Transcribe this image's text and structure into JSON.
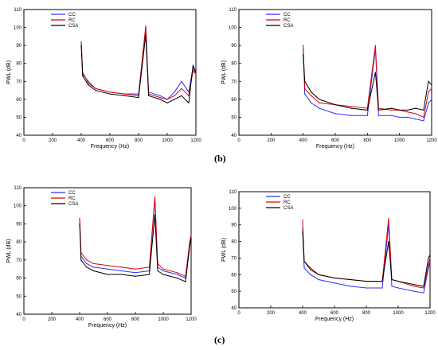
{
  "captions": {
    "top": "(b)",
    "bottom": "(c)"
  },
  "colors": {
    "CC": "#2d2dff",
    "RC": "#e00000",
    "CSA": "#000000",
    "axis": "#000000"
  },
  "chart_data": [
    {
      "type": "line",
      "xlabel": "Frequency (Hz)",
      "ylabel": "PWL (dB)",
      "xlim": [
        0,
        1200
      ],
      "ylim": [
        40,
        110
      ],
      "xticks": [
        0,
        200,
        400,
        600,
        800,
        1000,
        1200
      ],
      "yticks": [
        40,
        50,
        60,
        70,
        80,
        90,
        100,
        110
      ],
      "legend": "top-left",
      "series": [
        {
          "name": "CC",
          "values": [
            [
              400,
              92
            ],
            [
              410,
              74
            ],
            [
              450,
              70
            ],
            [
              500,
              66
            ],
            [
              600,
              64
            ],
            [
              700,
              63
            ],
            [
              800,
              63
            ],
            [
              850,
              100
            ],
            [
              870,
              64
            ],
            [
              950,
              62
            ],
            [
              1000,
              60
            ],
            [
              1050,
              64
            ],
            [
              1100,
              70
            ],
            [
              1150,
              64
            ],
            [
              1180,
              78
            ],
            [
              1200,
              74
            ]
          ]
        },
        {
          "name": "RC",
          "values": [
            [
              400,
              92
            ],
            [
              410,
              75
            ],
            [
              450,
              69
            ],
            [
              500,
              66
            ],
            [
              600,
              64
            ],
            [
              700,
              63
            ],
            [
              800,
              62
            ],
            [
              850,
              101
            ],
            [
              870,
              63
            ],
            [
              950,
              61
            ],
            [
              1000,
              60
            ],
            [
              1050,
              62
            ],
            [
              1100,
              66
            ],
            [
              1150,
              62
            ],
            [
              1180,
              76
            ],
            [
              1200,
              74
            ]
          ]
        },
        {
          "name": "CSA",
          "values": [
            [
              400,
              90
            ],
            [
              410,
              73
            ],
            [
              450,
              68
            ],
            [
              500,
              65
            ],
            [
              600,
              63
            ],
            [
              700,
              62
            ],
            [
              800,
              61
            ],
            [
              850,
              96
            ],
            [
              870,
              62
            ],
            [
              950,
              60
            ],
            [
              1000,
              58
            ],
            [
              1050,
              60
            ],
            [
              1100,
              62
            ],
            [
              1150,
              58
            ],
            [
              1180,
              79
            ],
            [
              1200,
              75
            ]
          ]
        }
      ]
    },
    {
      "type": "line",
      "xlabel": "Frequency (Hz)",
      "ylabel": "PWL (dB)",
      "xlim": [
        0,
        1200
      ],
      "ylim": [
        40,
        110
      ],
      "xticks": [
        0,
        200,
        400,
        600,
        800,
        1000,
        1200
      ],
      "yticks": [
        40,
        50,
        60,
        70,
        80,
        90,
        100,
        110
      ],
      "legend": "top-left",
      "series": [
        {
          "name": "CC",
          "values": [
            [
              400,
              88
            ],
            [
              410,
              63
            ],
            [
              450,
              58
            ],
            [
              500,
              55
            ],
            [
              600,
              52
            ],
            [
              700,
              51
            ],
            [
              800,
              51
            ],
            [
              850,
              88
            ],
            [
              870,
              51
            ],
            [
              950,
              51
            ],
            [
              1000,
              50
            ],
            [
              1050,
              50
            ],
            [
              1100,
              49
            ],
            [
              1150,
              48
            ],
            [
              1180,
              58
            ],
            [
              1200,
              60
            ]
          ]
        },
        {
          "name": "RC",
          "values": [
            [
              400,
              90
            ],
            [
              410,
              66
            ],
            [
              450,
              62
            ],
            [
              500,
              58
            ],
            [
              600,
              57
            ],
            [
              700,
              56
            ],
            [
              800,
              55
            ],
            [
              850,
              90
            ],
            [
              870,
              55
            ],
            [
              950,
              54
            ],
            [
              1000,
              54
            ],
            [
              1050,
              53
            ],
            [
              1100,
              52
            ],
            [
              1150,
              50
            ],
            [
              1180,
              64
            ],
            [
              1200,
              66
            ]
          ]
        },
        {
          "name": "CSA",
          "values": [
            [
              400,
              85
            ],
            [
              410,
              70
            ],
            [
              450,
              64
            ],
            [
              500,
              60
            ],
            [
              600,
              57
            ],
            [
              700,
              55
            ],
            [
              800,
              54
            ],
            [
              850,
              75
            ],
            [
              870,
              54
            ],
            [
              950,
              55
            ],
            [
              1000,
              54
            ],
            [
              1050,
              54
            ],
            [
              1100,
              55
            ],
            [
              1150,
              54
            ],
            [
              1180,
              70
            ],
            [
              1200,
              68
            ]
          ]
        }
      ]
    },
    {
      "type": "line",
      "xlabel": "Frequency (Hz)",
      "ylabel": "PWL (dB)",
      "xlim": [
        0,
        1200
      ],
      "ylim": [
        40,
        110
      ],
      "xticks": [
        0,
        200,
        400,
        600,
        800,
        1000,
        1200
      ],
      "yticks": [
        40,
        50,
        60,
        70,
        80,
        90,
        100,
        110
      ],
      "legend": "top-left",
      "series": [
        {
          "name": "CC",
          "values": [
            [
              400,
              93
            ],
            [
              410,
              72
            ],
            [
              450,
              68
            ],
            [
              500,
              66
            ],
            [
              600,
              65
            ],
            [
              700,
              64
            ],
            [
              800,
              63
            ],
            [
              900,
              64
            ],
            [
              940,
              104
            ],
            [
              960,
              66
            ],
            [
              1000,
              64
            ],
            [
              1100,
              62
            ],
            [
              1160,
              60
            ],
            [
              1190,
              80
            ],
            [
              1200,
              84
            ]
          ]
        },
        {
          "name": "RC",
          "values": [
            [
              400,
              93
            ],
            [
              410,
              74
            ],
            [
              450,
              70
            ],
            [
              500,
              68
            ],
            [
              600,
              67
            ],
            [
              700,
              66
            ],
            [
              800,
              65
            ],
            [
              900,
              66
            ],
            [
              940,
              105
            ],
            [
              960,
              68
            ],
            [
              1000,
              65
            ],
            [
              1100,
              63
            ],
            [
              1160,
              61
            ],
            [
              1190,
              80
            ],
            [
              1200,
              84
            ]
          ]
        },
        {
          "name": "CSA",
          "values": [
            [
              400,
              90
            ],
            [
              410,
              70
            ],
            [
              450,
              66
            ],
            [
              500,
              64
            ],
            [
              600,
              62
            ],
            [
              700,
              62
            ],
            [
              800,
              61
            ],
            [
              900,
              62
            ],
            [
              940,
              95
            ],
            [
              960,
              64
            ],
            [
              1000,
              62
            ],
            [
              1100,
              60
            ],
            [
              1160,
              58
            ],
            [
              1190,
              78
            ],
            [
              1200,
              82
            ]
          ]
        }
      ]
    },
    {
      "type": "line",
      "xlabel": "Frequency (Hz)",
      "ylabel": "PWL (dB)",
      "xlim": [
        0,
        1200
      ],
      "ylim": [
        40,
        110
      ],
      "xticks": [
        0,
        200,
        400,
        600,
        800,
        1000,
        1200
      ],
      "yticks": [
        40,
        50,
        60,
        70,
        80,
        90,
        100,
        110
      ],
      "legend": "top-left",
      "series": [
        {
          "name": "CC",
          "values": [
            [
              400,
              88
            ],
            [
              410,
              64
            ],
            [
              450,
              60
            ],
            [
              500,
              57
            ],
            [
              600,
              55
            ],
            [
              700,
              53
            ],
            [
              800,
              52
            ],
            [
              900,
              52
            ],
            [
              940,
              90
            ],
            [
              960,
              53
            ],
            [
              1000,
              52
            ],
            [
              1100,
              50
            ],
            [
              1160,
              49
            ],
            [
              1190,
              64
            ],
            [
              1200,
              68
            ]
          ]
        },
        {
          "name": "RC",
          "values": [
            [
              400,
              93
            ],
            [
              410,
              68
            ],
            [
              450,
              64
            ],
            [
              500,
              60
            ],
            [
              600,
              58
            ],
            [
              700,
              57
            ],
            [
              800,
              56
            ],
            [
              900,
              56
            ],
            [
              940,
              94
            ],
            [
              960,
              57
            ],
            [
              1000,
              56
            ],
            [
              1100,
              53
            ],
            [
              1160,
              52
            ],
            [
              1190,
              66
            ],
            [
              1200,
              70
            ]
          ]
        },
        {
          "name": "CSA",
          "values": [
            [
              400,
              86
            ],
            [
              410,
              68
            ],
            [
              450,
              63
            ],
            [
              500,
              60
            ],
            [
              600,
              58
            ],
            [
              700,
              57
            ],
            [
              800,
              56
            ],
            [
              900,
              56
            ],
            [
              940,
              80
            ],
            [
              960,
              57
            ],
            [
              1000,
              56
            ],
            [
              1100,
              54
            ],
            [
              1160,
              53
            ],
            [
              1190,
              70
            ],
            [
              1200,
              72
            ]
          ]
        }
      ]
    }
  ]
}
